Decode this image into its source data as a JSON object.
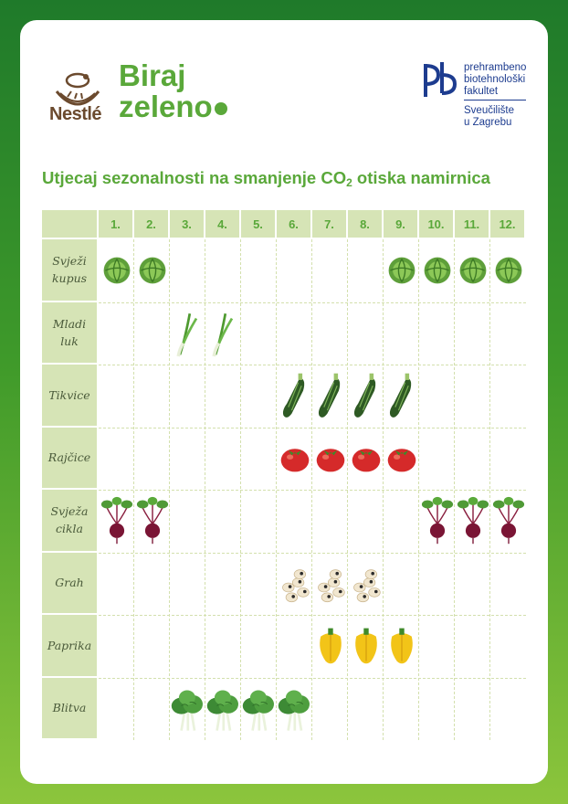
{
  "header": {
    "brand": "Nestlé",
    "campaign_line1": "Biraj",
    "campaign_line2": "zeleno",
    "university": {
      "line1": "prehrambeno",
      "line2": "biotehnološki",
      "line3": "fakultet",
      "line4": "Sveučilište",
      "line5": "u Zagrebu"
    }
  },
  "title_main": "Utjecaj sezonalnosti na smanjenje CO",
  "title_sub": "2",
  "title_end": " otiska namirnica",
  "months": [
    "1.",
    "2.",
    "3.",
    "4.",
    "5.",
    "6.",
    "7.",
    "8.",
    "9.",
    "10.",
    "11.",
    "12."
  ],
  "rows": [
    {
      "label1": "Svježi",
      "label2": "kupus",
      "icon": "cabbage-icon",
      "months": [
        1,
        2,
        9,
        10,
        11,
        12
      ]
    },
    {
      "label1": "Mladi",
      "label2": "luk",
      "icon": "spring-onion-icon",
      "months": [
        3,
        4
      ]
    },
    {
      "label1": "Tikvice",
      "label2": "",
      "icon": "zucchini-icon",
      "months": [
        6,
        7,
        8,
        9
      ]
    },
    {
      "label1": "Rajčice",
      "label2": "",
      "icon": "tomato-icon",
      "months": [
        6,
        7,
        8,
        9
      ]
    },
    {
      "label1": "Svježa",
      "label2": "cikla",
      "icon": "beetroot-icon",
      "months": [
        1,
        2,
        10,
        11,
        12
      ]
    },
    {
      "label1": "Grah",
      "label2": "",
      "icon": "beans-icon",
      "months": [
        6,
        7,
        8
      ]
    },
    {
      "label1": "Paprika",
      "label2": "",
      "icon": "pepper-icon",
      "months": [
        7,
        8,
        9
      ]
    },
    {
      "label1": "Blitva",
      "label2": "",
      "icon": "chard-icon",
      "months": [
        3,
        4,
        5,
        6
      ]
    }
  ],
  "colors": {
    "green": "#5aa83a",
    "header_bg": "#d6e4b6",
    "navy": "#1d3c8f"
  }
}
